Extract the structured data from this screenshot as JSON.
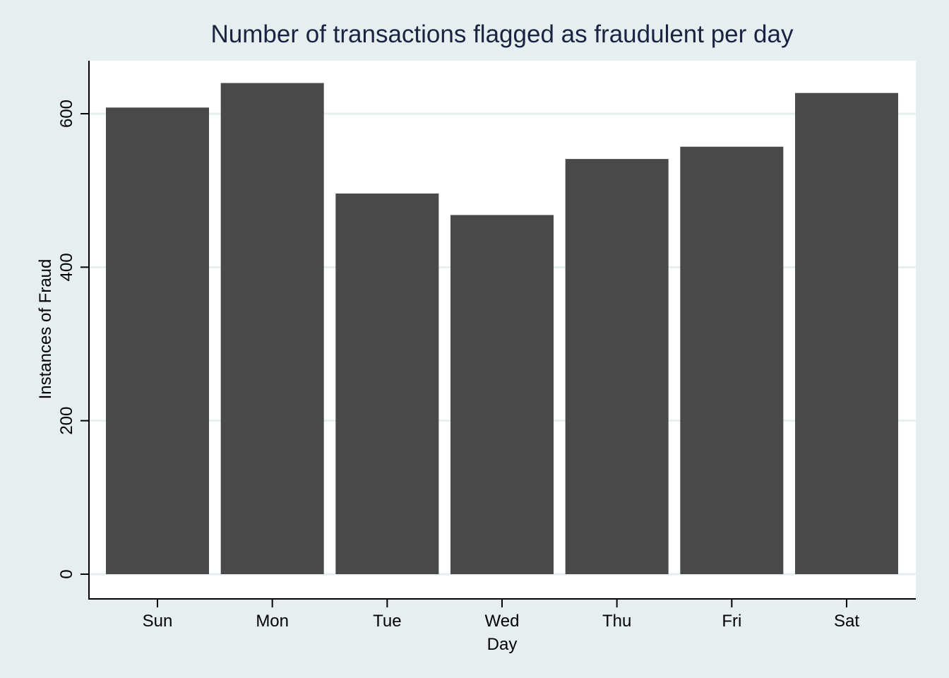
{
  "chart_data": {
    "type": "bar",
    "title": "Number of transactions flagged as fraudulent per day",
    "xlabel": "Day",
    "ylabel": "Instances of Fraud",
    "categories": [
      "Sun",
      "Mon",
      "Tue",
      "Wed",
      "Thu",
      "Fri",
      "Sat"
    ],
    "values": [
      608,
      640,
      496,
      468,
      541,
      557,
      627
    ],
    "ylim": [
      0,
      600
    ],
    "yticks": [
      0,
      200,
      400,
      600
    ],
    "ytick_labels": [
      "0",
      "200",
      "400",
      "600"
    ],
    "grid": true,
    "legend": "none",
    "colors": {
      "bar": "#494949",
      "background": "#e7eef0",
      "plot_background": "#ffffff",
      "grid": "#e7eef0",
      "title": "#1a2341",
      "axis": "#000000"
    }
  }
}
